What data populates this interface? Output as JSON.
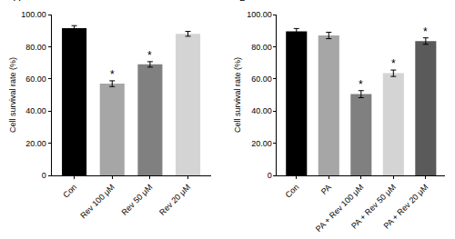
{
  "chart_data": [
    {
      "type": "bar",
      "title": "A",
      "y_label": "Cell survival rate (%)",
      "categories": [
        "Con",
        "Rev 100 μM",
        "Rev 50 μM",
        "Rev 20 μM"
      ],
      "values": [
        91.5,
        57,
        69,
        88
      ],
      "errors": [
        1.6,
        1.8,
        1.7,
        1.5
      ],
      "colors": [
        "#000000",
        "#a6a6a6",
        "#808080",
        "#d4d4d4"
      ],
      "ylim": [
        0,
        100
      ],
      "yticks": [
        0,
        {
          "value": 20,
          "label": "20.00"
        },
        {
          "value": 40,
          "label": "40.00"
        },
        {
          "value": 60,
          "label": "60.00"
        },
        {
          "value": 80,
          "label": "80.00"
        },
        {
          "value": 100,
          "label": "100.00"
        }
      ],
      "grid": false,
      "annotations": [
        {
          "category": "Rev 100 μM",
          "text": "*"
        },
        {
          "category": "Rev 50 μM",
          "text": "*"
        }
      ]
    },
    {
      "type": "bar",
      "title": "B",
      "y_label": "Cell survival rate (%)",
      "categories": [
        "Con",
        "PA",
        "PA + Rev 100 μM",
        "PA + Rev 50 μM",
        "PA + Rev 20 μM"
      ],
      "values": [
        89.5,
        87,
        50.5,
        63.5,
        83.5
      ],
      "errors": [
        1.8,
        2.0,
        2.2,
        2.0,
        2.0
      ],
      "colors": [
        "#000000",
        "#a6a6a6",
        "#808080",
        "#d4d4d4",
        "#5a5a5a"
      ],
      "ylim": [
        0,
        100
      ],
      "yticks": [
        0,
        {
          "value": 20,
          "label": "20.00"
        },
        {
          "value": 40,
          "label": "40.00"
        },
        {
          "value": 60,
          "label": "60.00"
        },
        {
          "value": 80,
          "label": "80.00"
        },
        {
          "value": 100,
          "label": "100.00"
        }
      ],
      "grid": false,
      "annotations": [
        {
          "category": "PA + Rev 100 μM",
          "text": "*"
        },
        {
          "category": "PA + Rev 50 μM",
          "text": "*"
        },
        {
          "category": "PA + Rev 20 μM",
          "text": "*"
        }
      ]
    }
  ]
}
